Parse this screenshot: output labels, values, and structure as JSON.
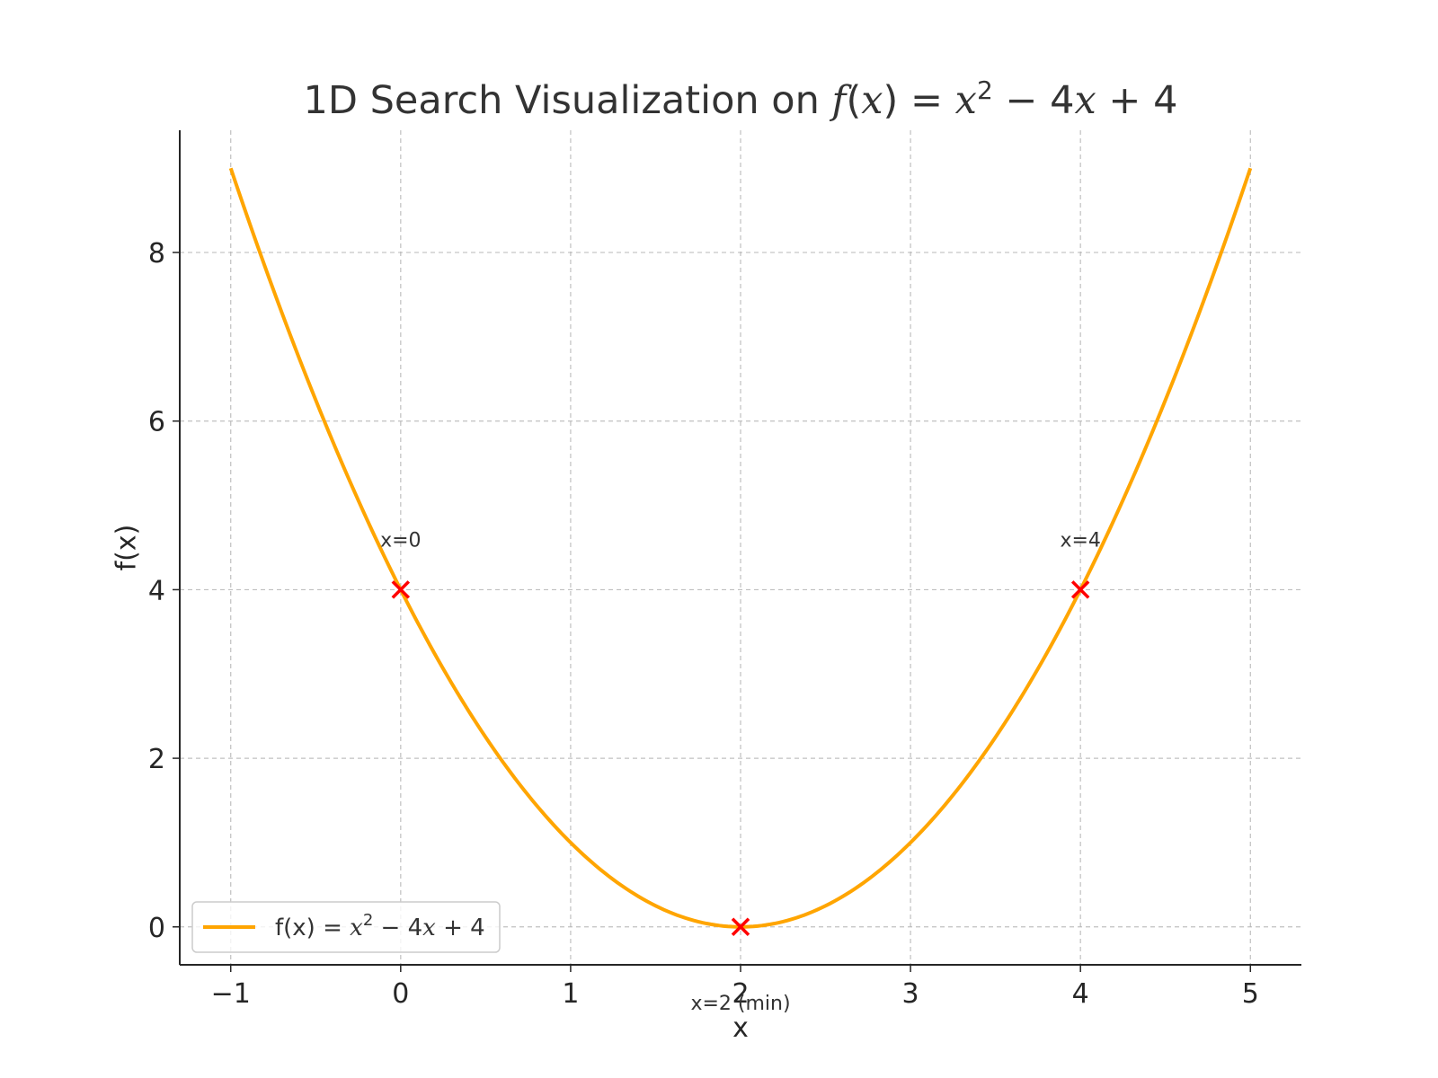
{
  "chart_data": {
    "type": "line",
    "title_parts": {
      "prefix": "1D Search Visualization on ",
      "math": [
        "f",
        "(",
        "x",
        ") = ",
        "x",
        "2",
        " − 4",
        "x",
        " + 4"
      ]
    },
    "xlabel": "x",
    "ylabel": "f(x)",
    "xlim": [
      -1.3,
      5.3
    ],
    "ylim": [
      -0.45,
      9.45
    ],
    "x_ticks": [
      -1,
      0,
      1,
      2,
      3,
      4,
      5
    ],
    "x_tick_labels": [
      "−1",
      "0",
      "1",
      "2",
      "3",
      "4",
      "5"
    ],
    "y_ticks": [
      0,
      2,
      4,
      6,
      8
    ],
    "y_tick_labels": [
      "0",
      "2",
      "4",
      "6",
      "8"
    ],
    "grid": true,
    "legend_position": "lower-left",
    "series": [
      {
        "name_parts": [
          "f(x) = ",
          "x",
          "2",
          " − 4",
          "x",
          " + 4"
        ],
        "color": "#ffa500",
        "function": "x^2 - 4x + 4",
        "x_range": [
          -1,
          5
        ],
        "x": [
          -1,
          -0.5,
          0,
          0.5,
          1,
          1.5,
          2,
          2.5,
          3,
          3.5,
          4,
          4.5,
          5
        ],
        "y": [
          9,
          6.25,
          4,
          2.25,
          1,
          0.25,
          0,
          0.25,
          1,
          2.25,
          4,
          6.25,
          9
        ]
      }
    ],
    "points": [
      {
        "x": 0,
        "y": 4,
        "label": "x=0",
        "label_position": "above"
      },
      {
        "x": 2,
        "y": 0,
        "label": "x=2 (min)",
        "label_position": "below"
      },
      {
        "x": 4,
        "y": 4,
        "label": "x=4",
        "label_position": "above"
      }
    ],
    "marker_color": "#ff0000"
  }
}
